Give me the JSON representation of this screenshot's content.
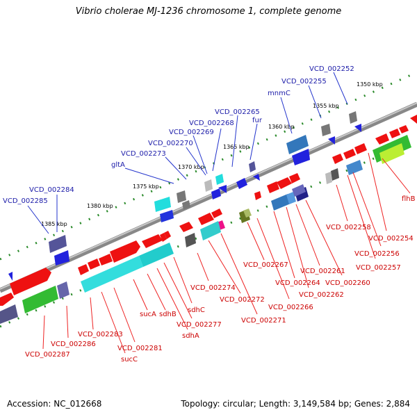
{
  "title": "Vibrio cholerae MJ-1236 chromosome 1, complete genome",
  "accession": "Accession: NC_012668",
  "summary": "Topology: circular; Length: 3,149,584 bp; Genes: 2,884",
  "ticks": [
    "1350 kbp",
    "1355 kbp",
    "1360 kbp",
    "1365 kbp",
    "1370 kbp",
    "1375 kbp",
    "1380 kbp",
    "1385 kbp"
  ],
  "labels_top": [
    "VCD_002252",
    "VCD_002255",
    "mnmC",
    "fur",
    "VCD_002265",
    "VCD_002268",
    "VCD_002269",
    "VCD_002270",
    "VCD_002273",
    "gltA",
    "VCD_002284",
    "VCD_002285"
  ],
  "labels_bottom": [
    "flhB",
    "VCD_002254",
    "VCD_002256",
    "VCD_002257",
    "VCD_002258",
    "VCD_002260",
    "VCD_002261",
    "VCD_002262",
    "VCD_002264",
    "VCD_002266",
    "VCD_002267",
    "VCD_002271",
    "VCD_002272",
    "VCD_002274",
    "sdhC",
    "VCD_002277",
    "sdhA",
    "sdhB",
    "sucA",
    "VCD_002281",
    "sucC",
    "VCD_002283",
    "VCD_002286",
    "VCD_002287"
  ],
  "colors": {
    "forward": "#ee0000",
    "reverse": "#0000ee",
    "backbone": "#808080",
    "label_blue": "#1a1aa8",
    "label_red": "#cc0000"
  }
}
